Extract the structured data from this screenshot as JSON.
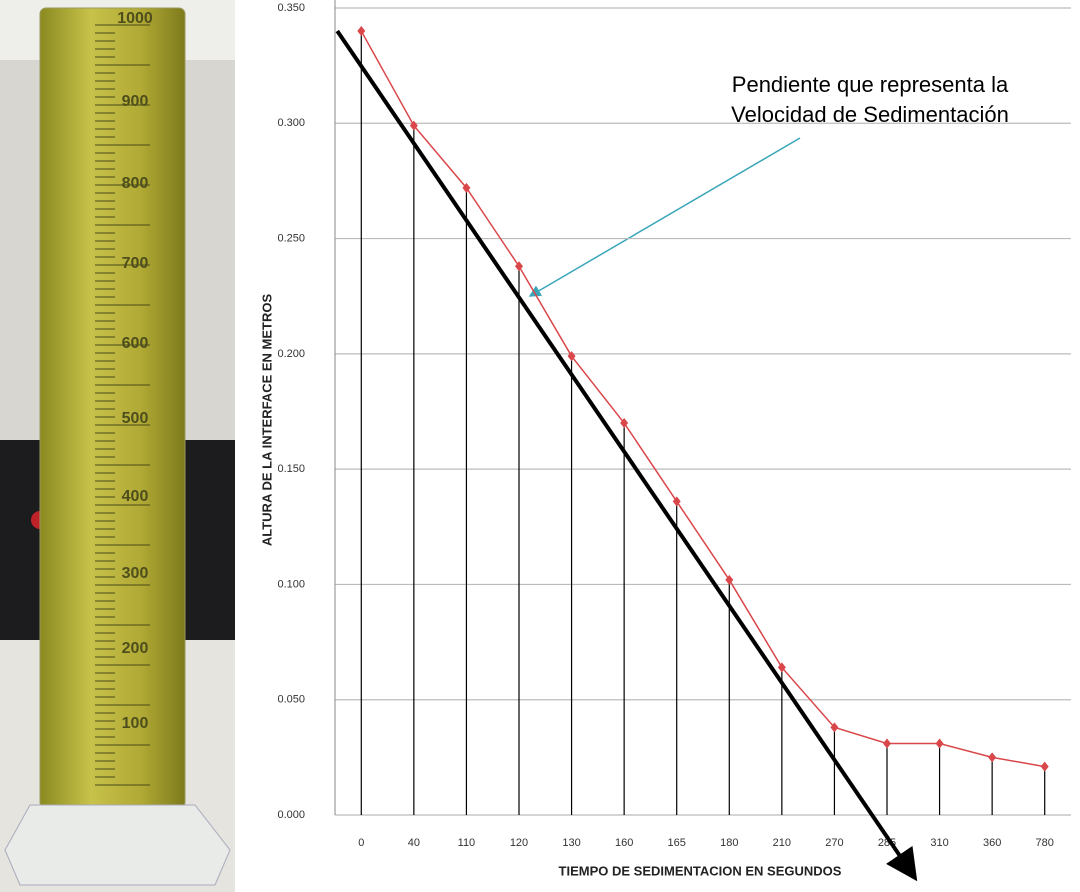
{
  "photo": {
    "scale_labels": [
      1000,
      900,
      800,
      700,
      600,
      500,
      400,
      300,
      200,
      100
    ]
  },
  "chart_data": {
    "type": "line",
    "annotation": [
      "Pendiente que representa la",
      "Velocidad de Sedimentación"
    ],
    "x_label": "TIEMPO DE SEDIMENTACION EN SEGUNDOS",
    "y_label": "ALTURA DE LA INTERFACE  EN METROS",
    "categories": [
      "0",
      "40",
      "110",
      "120",
      "130",
      "160",
      "165",
      "180",
      "210",
      "270",
      "285",
      "310",
      "360",
      "780"
    ],
    "values": [
      0.34,
      0.299,
      0.272,
      0.238,
      0.199,
      0.17,
      0.136,
      0.102,
      0.064,
      0.038,
      0.031,
      0.031,
      0.025,
      0.021
    ],
    "color": "#d9474a",
    "ylim": [
      0,
      0.35
    ],
    "yticks": [
      {
        "value": 0,
        "label": "0.000"
      },
      {
        "value": 0.05,
        "label": "0.050"
      },
      {
        "value": 0.1,
        "label": "0.100"
      },
      {
        "value": 0.15,
        "label": "0.150"
      },
      {
        "value": 0.2,
        "label": "0.200"
      },
      {
        "value": 0.25,
        "label": "0.250"
      },
      {
        "value": 0.3,
        "label": "0.300"
      },
      {
        "value": 0.35,
        "label": "0.350"
      }
    ],
    "grid": true
  }
}
